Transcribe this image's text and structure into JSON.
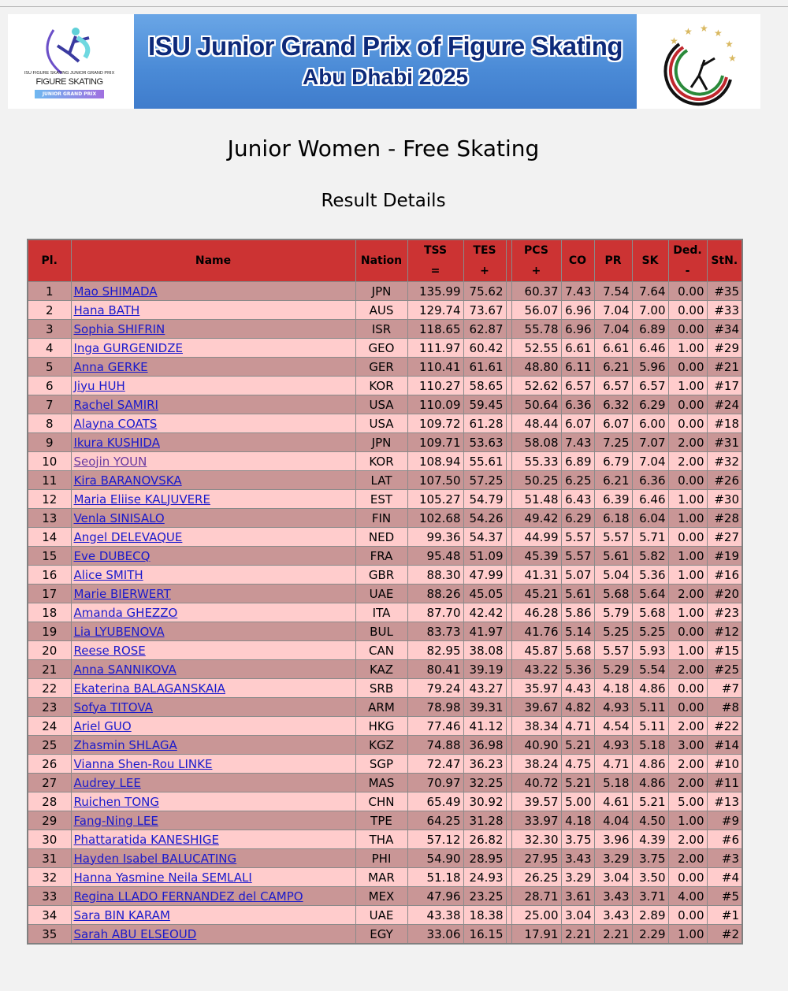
{
  "banner": {
    "title": "ISU Junior Grand Prix of Figure Skating",
    "subtitle": "Abu Dhabi 2025",
    "left_logo_text": "ISU FIGURE SKATING JUNIOR GRAND PRIX",
    "left_logo_main": "FIGURE SKATING",
    "left_logo_sub": "JUNIOR GRAND PRIX"
  },
  "page": {
    "title": "Junior Women - Free Skating",
    "subtitle": "Result Details"
  },
  "colors": {
    "header": "#cc3333",
    "row_dark": "#c99696",
    "row_light": "#ffcccc",
    "link": "#1a1acc",
    "visited_link": "#6a3aa0"
  },
  "table": {
    "headers": [
      {
        "top": "Pl.",
        "bottom": ""
      },
      {
        "top": "Name",
        "bottom": ""
      },
      {
        "top": "Nation",
        "bottom": ""
      },
      {
        "top": "TSS",
        "bottom": "="
      },
      {
        "top": "TES",
        "bottom": "+"
      },
      {
        "top": "",
        "bottom": ""
      },
      {
        "top": "PCS",
        "bottom": "+"
      },
      {
        "top": "CO",
        "bottom": ""
      },
      {
        "top": "PR",
        "bottom": ""
      },
      {
        "top": "SK",
        "bottom": ""
      },
      {
        "top": "Ded.",
        "bottom": "-"
      },
      {
        "top": "StN.",
        "bottom": ""
      }
    ],
    "visited_rows": [
      10
    ],
    "rows": [
      [
        "1",
        "Mao SHIMADA",
        "JPN",
        "135.99",
        "75.62",
        "60.37",
        "7.43",
        "7.54",
        "7.64",
        "0.00",
        "#35"
      ],
      [
        "2",
        "Hana BATH",
        "AUS",
        "129.74",
        "73.67",
        "56.07",
        "6.96",
        "7.04",
        "7.00",
        "0.00",
        "#33"
      ],
      [
        "3",
        "Sophia SHIFRIN",
        "ISR",
        "118.65",
        "62.87",
        "55.78",
        "6.96",
        "7.04",
        "6.89",
        "0.00",
        "#34"
      ],
      [
        "4",
        "Inga GURGENIDZE",
        "GEO",
        "111.97",
        "60.42",
        "52.55",
        "6.61",
        "6.61",
        "6.46",
        "1.00",
        "#29"
      ],
      [
        "5",
        "Anna GERKE",
        "GER",
        "110.41",
        "61.61",
        "48.80",
        "6.11",
        "6.21",
        "5.96",
        "0.00",
        "#21"
      ],
      [
        "6",
        "Jiyu HUH",
        "KOR",
        "110.27",
        "58.65",
        "52.62",
        "6.57",
        "6.57",
        "6.57",
        "1.00",
        "#17"
      ],
      [
        "7",
        "Rachel SAMIRI",
        "USA",
        "110.09",
        "59.45",
        "50.64",
        "6.36",
        "6.32",
        "6.29",
        "0.00",
        "#24"
      ],
      [
        "8",
        "Alayna COATS",
        "USA",
        "109.72",
        "61.28",
        "48.44",
        "6.07",
        "6.07",
        "6.00",
        "0.00",
        "#18"
      ],
      [
        "9",
        "Ikura KUSHIDA",
        "JPN",
        "109.71",
        "53.63",
        "58.08",
        "7.43",
        "7.25",
        "7.07",
        "2.00",
        "#31"
      ],
      [
        "10",
        "Seojin YOUN",
        "KOR",
        "108.94",
        "55.61",
        "55.33",
        "6.89",
        "6.79",
        "7.04",
        "2.00",
        "#32"
      ],
      [
        "11",
        "Kira BARANOVSKA",
        "LAT",
        "107.50",
        "57.25",
        "50.25",
        "6.25",
        "6.21",
        "6.36",
        "0.00",
        "#26"
      ],
      [
        "12",
        "Maria Eliise KALJUVERE",
        "EST",
        "105.27",
        "54.79",
        "51.48",
        "6.43",
        "6.39",
        "6.46",
        "1.00",
        "#30"
      ],
      [
        "13",
        "Venla SINISALO",
        "FIN",
        "102.68",
        "54.26",
        "49.42",
        "6.29",
        "6.18",
        "6.04",
        "1.00",
        "#28"
      ],
      [
        "14",
        "Angel DELEVAQUE",
        "NED",
        "99.36",
        "54.37",
        "44.99",
        "5.57",
        "5.57",
        "5.71",
        "0.00",
        "#27"
      ],
      [
        "15",
        "Eve DUBECQ",
        "FRA",
        "95.48",
        "51.09",
        "45.39",
        "5.57",
        "5.61",
        "5.82",
        "1.00",
        "#19"
      ],
      [
        "16",
        "Alice SMITH",
        "GBR",
        "88.30",
        "47.99",
        "41.31",
        "5.07",
        "5.04",
        "5.36",
        "1.00",
        "#16"
      ],
      [
        "17",
        "Marie BIERWERT",
        "UAE",
        "88.26",
        "45.05",
        "45.21",
        "5.61",
        "5.68",
        "5.64",
        "2.00",
        "#20"
      ],
      [
        "18",
        "Amanda GHEZZO",
        "ITA",
        "87.70",
        "42.42",
        "46.28",
        "5.86",
        "5.79",
        "5.68",
        "1.00",
        "#23"
      ],
      [
        "19",
        "Lia LYUBENOVA",
        "BUL",
        "83.73",
        "41.97",
        "41.76",
        "5.14",
        "5.25",
        "5.25",
        "0.00",
        "#12"
      ],
      [
        "20",
        "Reese ROSE",
        "CAN",
        "82.95",
        "38.08",
        "45.87",
        "5.68",
        "5.57",
        "5.93",
        "1.00",
        "#15"
      ],
      [
        "21",
        "Anna SANNIKOVA",
        "KAZ",
        "80.41",
        "39.19",
        "43.22",
        "5.36",
        "5.29",
        "5.54",
        "2.00",
        "#25"
      ],
      [
        "22",
        "Ekaterina BALAGANSKAIA",
        "SRB",
        "79.24",
        "43.27",
        "35.97",
        "4.43",
        "4.18",
        "4.86",
        "0.00",
        "#7"
      ],
      [
        "23",
        "Sofya TITOVA",
        "ARM",
        "78.98",
        "39.31",
        "39.67",
        "4.82",
        "4.93",
        "5.11",
        "0.00",
        "#8"
      ],
      [
        "24",
        "Ariel GUO",
        "HKG",
        "77.46",
        "41.12",
        "38.34",
        "4.71",
        "4.54",
        "5.11",
        "2.00",
        "#22"
      ],
      [
        "25",
        "Zhasmin SHLAGA",
        "KGZ",
        "74.88",
        "36.98",
        "40.90",
        "5.21",
        "4.93",
        "5.18",
        "3.00",
        "#14"
      ],
      [
        "26",
        "Vianna Shen-Rou LINKE",
        "SGP",
        "72.47",
        "36.23",
        "38.24",
        "4.75",
        "4.71",
        "4.86",
        "2.00",
        "#10"
      ],
      [
        "27",
        "Audrey LEE",
        "MAS",
        "70.97",
        "32.25",
        "40.72",
        "5.21",
        "5.18",
        "4.86",
        "2.00",
        "#11"
      ],
      [
        "28",
        "Ruichen TONG",
        "CHN",
        "65.49",
        "30.92",
        "39.57",
        "5.00",
        "4.61",
        "5.21",
        "5.00",
        "#13"
      ],
      [
        "29",
        "Fang-Ning LEE",
        "TPE",
        "64.25",
        "31.28",
        "33.97",
        "4.18",
        "4.04",
        "4.50",
        "1.00",
        "#9"
      ],
      [
        "30",
        "Phattaratida KANESHIGE",
        "THA",
        "57.12",
        "26.82",
        "32.30",
        "3.75",
        "3.96",
        "4.39",
        "2.00",
        "#6"
      ],
      [
        "31",
        "Hayden Isabel BALUCATING",
        "PHI",
        "54.90",
        "28.95",
        "27.95",
        "3.43",
        "3.29",
        "3.75",
        "2.00",
        "#3"
      ],
      [
        "32",
        "Hanna Yasmine Neila SEMLALI",
        "MAR",
        "51.18",
        "24.93",
        "26.25",
        "3.29",
        "3.04",
        "3.50",
        "0.00",
        "#4"
      ],
      [
        "33",
        "Regina LLADO FERNANDEZ del CAMPO",
        "MEX",
        "47.96",
        "23.25",
        "28.71",
        "3.61",
        "3.43",
        "3.71",
        "4.00",
        "#5"
      ],
      [
        "34",
        "Sara BIN KARAM",
        "UAE",
        "43.38",
        "18.38",
        "25.00",
        "3.04",
        "3.43",
        "2.89",
        "0.00",
        "#1"
      ],
      [
        "35",
        "Sarah ABU ELSEOUD",
        "EGY",
        "33.06",
        "16.15",
        "17.91",
        "2.21",
        "2.21",
        "2.29",
        "1.00",
        "#2"
      ]
    ]
  }
}
